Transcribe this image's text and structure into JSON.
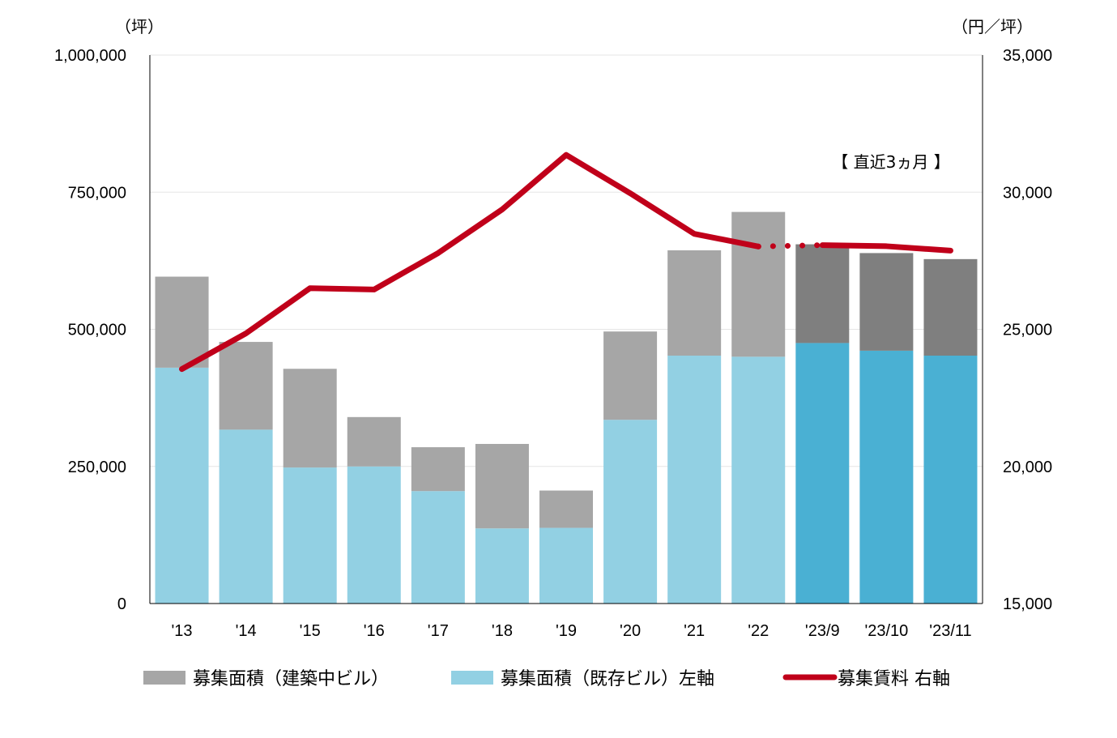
{
  "chart_data": {
    "type": "bar",
    "stacked": true,
    "categories": [
      "'13",
      "'14",
      "'15",
      "'16",
      "'17",
      "'18",
      "'19",
      "'20",
      "'21",
      "'22",
      "'23/9",
      "'23/10",
      "'23/11"
    ],
    "series": [
      {
        "name": "募集面積（既存ビル）左軸",
        "axis": "left",
        "values": [
          430000,
          317000,
          248000,
          250000,
          205000,
          137000,
          138000,
          335000,
          452000,
          450000,
          475000,
          461000,
          452000
        ],
        "color": "#92D0E3",
        "color_recent": "#4AB0D3"
      },
      {
        "name": "募集面積（建築中ビル）",
        "axis": "left",
        "values": [
          166000,
          160000,
          180000,
          90000,
          80000,
          154000,
          68000,
          161000,
          192000,
          264000,
          180000,
          178000,
          176000
        ],
        "color": "#A6A6A6",
        "color_recent": "#7F7F7F"
      },
      {
        "name": "募集賃料 右軸",
        "type": "line",
        "axis": "right",
        "values": [
          23550,
          24850,
          26500,
          26450,
          27780,
          29370,
          31360,
          29960,
          28480,
          28020,
          28070,
          28030,
          27870
        ],
        "color": "#C0001A"
      }
    ],
    "recent_start_index": 10,
    "left_axis": {
      "unit": "（坪）",
      "ylim": [
        0,
        1000000
      ],
      "ticks": [
        0,
        250000,
        500000,
        750000,
        1000000
      ],
      "tick_labels": [
        "0",
        "250,000",
        "500,000",
        "750,000",
        "1,000,000"
      ]
    },
    "right_axis": {
      "unit": "（円／坪）",
      "ylim": [
        15000,
        35000
      ],
      "ticks": [
        15000,
        20000,
        25000,
        30000,
        35000
      ],
      "tick_labels": [
        "15,000",
        "20,000",
        "25,000",
        "30,000",
        "35,000"
      ]
    },
    "grid": true,
    "annotation": "【 直近3ヵ月 】",
    "legend": {
      "position": "bottom",
      "items": [
        "募集面積（建築中ビル）",
        "募集面積（既存ビル）左軸",
        "募集賃料 右軸"
      ]
    }
  }
}
